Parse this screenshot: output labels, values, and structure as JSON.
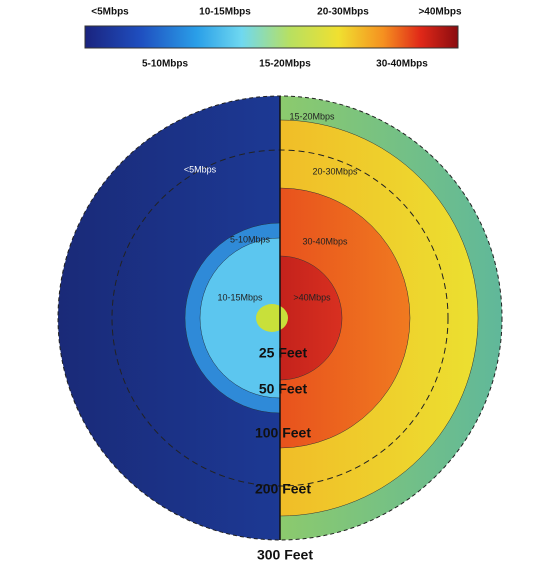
{
  "colorbar": {
    "top_labels": [
      "<5Mbps",
      "10-15Mbps",
      "20-30Mbps",
      ">40Mbps"
    ],
    "bottom_labels": [
      "5-10Mbps",
      "15-20Mbps",
      "30-40Mbps"
    ]
  },
  "zones": {
    "left": [
      "<5Mbps",
      "5-10Mbps",
      "10-15Mbps"
    ],
    "right": [
      "15-20Mbps",
      "20-30Mbps",
      "30-40Mbps",
      ">40Mbps"
    ]
  },
  "distances": [
    "25 Feet",
    "50 Feet",
    "100 Feet",
    "200 Feet",
    "300 Feet"
  ]
}
